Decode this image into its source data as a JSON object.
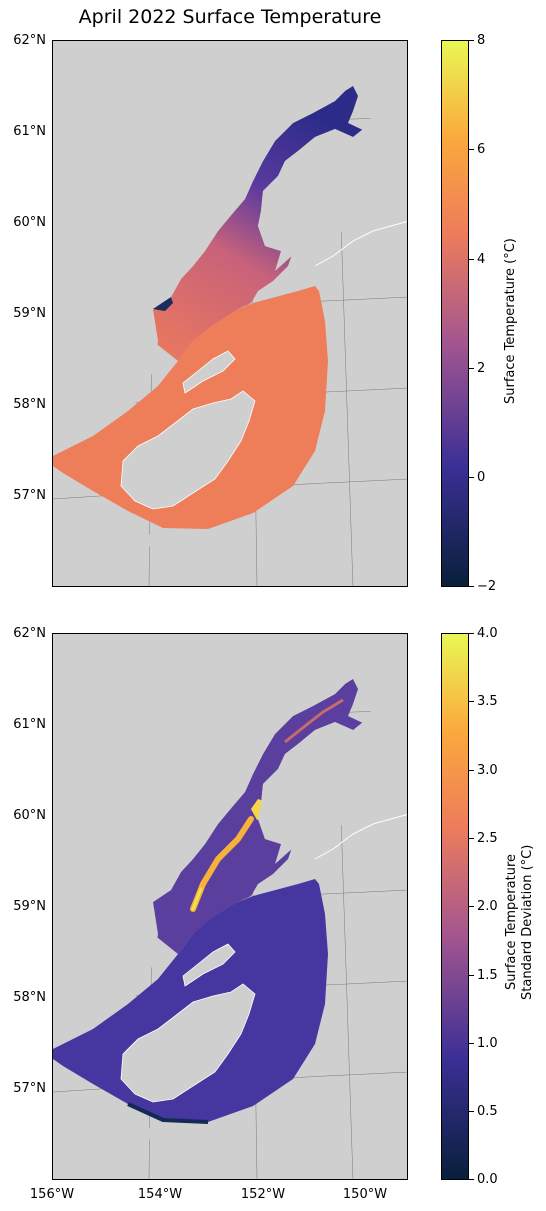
{
  "title": "April 2022 Surface Temperature",
  "lat_labels": [
    "62°N",
    "61°N",
    "60°N",
    "59°N",
    "58°N",
    "57°N"
  ],
  "lon_labels": [
    "156°W",
    "154°W",
    "152°W",
    "150°W"
  ],
  "panels": [
    {
      "name": "surface-temperature",
      "colorbar": {
        "label": "Surface Temperature (°C)",
        "ticks": [
          "8",
          "6",
          "4",
          "2",
          "0",
          "−2"
        ],
        "range": [
          -2,
          8
        ]
      },
      "field_color": "#ee7d5a"
    },
    {
      "name": "surface-temperature-std",
      "colorbar": {
        "label_line1": "Surface Temperature",
        "label_line2": "Standard Deviation (°C)",
        "ticks": [
          "4.0",
          "3.5",
          "3.0",
          "2.5",
          "2.0",
          "1.5",
          "1.0",
          "0.5",
          "0.0"
        ],
        "range": [
          0,
          4
        ]
      },
      "field_color": "#4a3fa6"
    }
  ],
  "colors": {
    "land": "#cfcfcf",
    "colormap": [
      "#08203a",
      "#3b2f96",
      "#a5568f",
      "#ee7d5a",
      "#fba83d",
      "#e9f754"
    ]
  }
}
